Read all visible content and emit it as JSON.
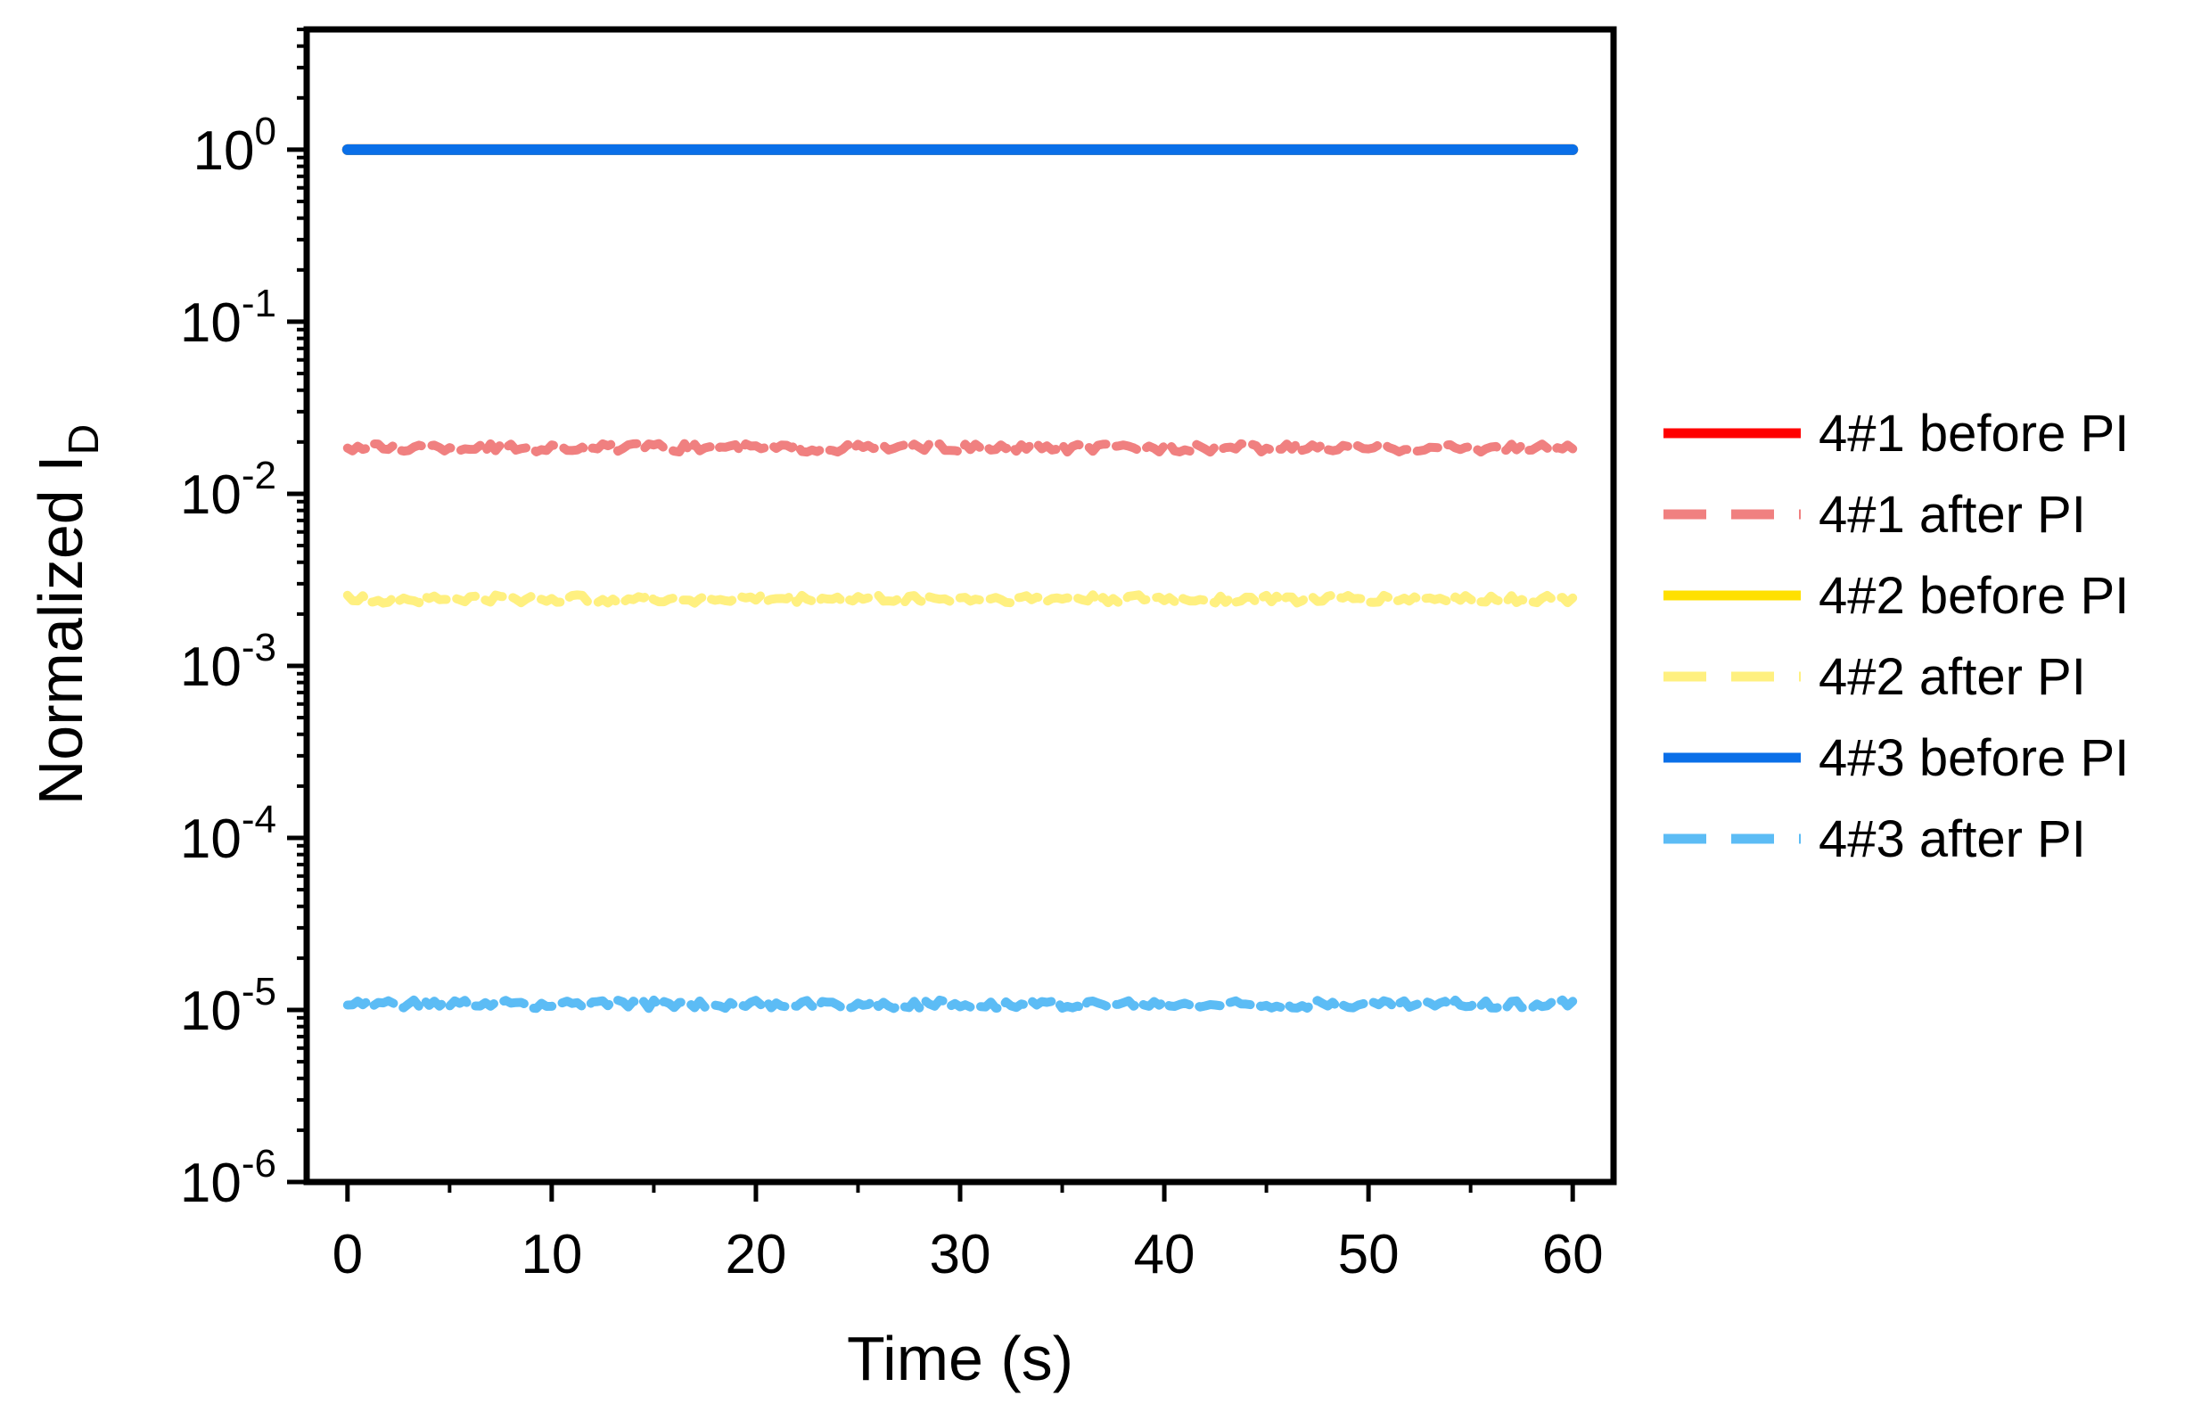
{
  "chart_data": {
    "type": "line",
    "title": "",
    "xlabel": "Time (s)",
    "ylabel_main": "Normalized I",
    "ylabel_sub": "D",
    "xlim": [
      -2,
      62
    ],
    "ylim": [
      1e-06,
      5
    ],
    "yscale": "log",
    "x_ticks": [
      0,
      10,
      20,
      30,
      40,
      50,
      60
    ],
    "x_tick_labels": [
      "0",
      "10",
      "20",
      "30",
      "40",
      "50",
      "60"
    ],
    "y_ticks": [
      {
        "value": 1,
        "base": "10",
        "exp": "0"
      },
      {
        "value": 0.1,
        "base": "10",
        "exp": "-1"
      },
      {
        "value": 0.01,
        "base": "10",
        "exp": "-2"
      },
      {
        "value": 0.001,
        "base": "10",
        "exp": "-3"
      },
      {
        "value": 0.0001,
        "base": "10",
        "exp": "-4"
      },
      {
        "value": 1e-05,
        "base": "10",
        "exp": "-5"
      },
      {
        "value": 1e-06,
        "base": "10",
        "exp": "-6"
      }
    ],
    "grid": false,
    "legend_position": "right",
    "x": [
      0,
      60
    ],
    "series": [
      {
        "name": "4#1 before PI",
        "values": [
          1.0,
          1.0
        ],
        "color": "#ff0000",
        "dash": "solid"
      },
      {
        "name": "4#1 after PI",
        "values": [
          0.0185,
          0.0185
        ],
        "color": "#f08080",
        "dash": "dashed"
      },
      {
        "name": "4#2 before PI",
        "values": [
          1.0,
          1.0
        ],
        "color": "#ffe000",
        "dash": "solid"
      },
      {
        "name": "4#2 after PI",
        "values": [
          0.00245,
          0.00245
        ],
        "color": "#fff080",
        "dash": "dashed"
      },
      {
        "name": "4#3 before PI",
        "values": [
          1.0,
          1.0
        ],
        "color": "#0a6fe8",
        "dash": "solid"
      },
      {
        "name": "4#3 after PI",
        "values": [
          1.08e-05,
          1.08e-05
        ],
        "color": "#5cbcf5",
        "dash": "dashed"
      }
    ]
  }
}
